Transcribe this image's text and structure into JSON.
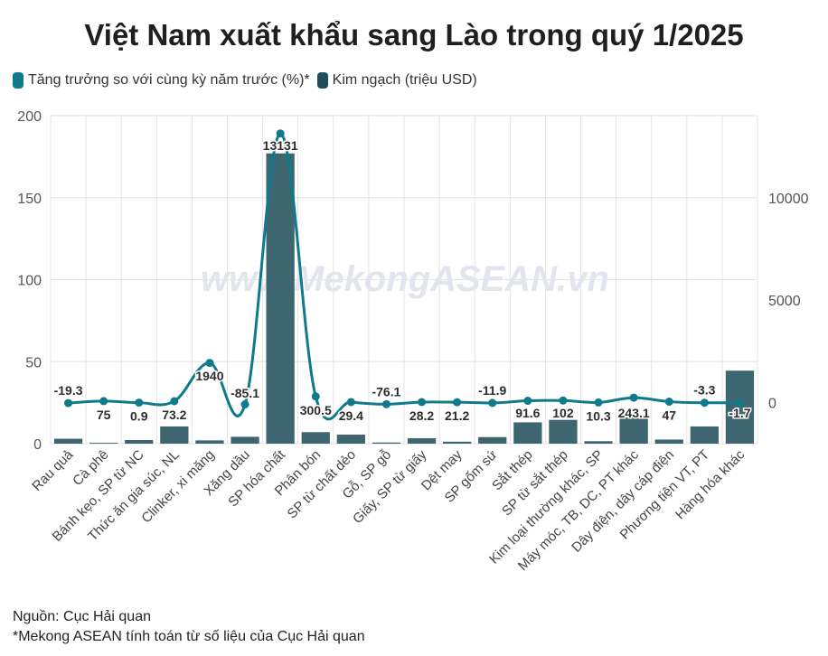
{
  "title": "Việt Nam xuất khẩu sang Lào trong quý 1/2025",
  "legend": {
    "growth": "Tăng trưởng so với cùng kỳ năm trước (%)*",
    "value": "Kim ngạch (triệu USD)"
  },
  "watermark": "www.MekongASEAN.vn",
  "notes": {
    "source": "Nguồn: Cục Hải quan",
    "footnote": "*Mekong ASEAN tính toán từ số liệu của Cục Hải quan"
  },
  "colors": {
    "bar": "#3e6670",
    "line": "#0e7a8c",
    "grid": "#e3e3e3"
  },
  "chart_data": {
    "type": "bar+line",
    "title": "Việt Nam xuất khẩu sang Lào trong quý 1/2025",
    "categories": [
      "Rau quả",
      "Cà phê",
      "Bánh kẹo, SP từ NC",
      "Thức ăn gia súc, NL",
      "Clinker, xi măng",
      "Xăng dầu",
      "SP hóa chất",
      "Phân bón",
      "SP từ chất dẻo",
      "Gỗ, SP gỗ",
      "Giấy, SP từ giấy",
      "Dệt may",
      "SP gốm sứ",
      "Sắt thép",
      "SP từ sắt thép",
      "Kim loại thường khác, SP",
      "Máy móc, TB, DC, PT khác",
      "Dây điện, dây cáp điện",
      "Phương tiện VT, PT",
      "Hàng hóa khác"
    ],
    "series": [
      {
        "name": "Kim ngạch (triệu USD)",
        "type": "bar",
        "axis": "left",
        "values": [
          3,
          0.5,
          2.2,
          10.5,
          2,
          4.2,
          177,
          7,
          5.5,
          0.7,
          3.3,
          1.2,
          4,
          13,
          14.5,
          1.5,
          16,
          2.5,
          10.5,
          44.5
        ]
      },
      {
        "name": "Tăng trưởng so với cùng kỳ năm trước (%)*",
        "type": "line",
        "axis": "right",
        "values": [
          -19.3,
          75,
          0.9,
          73.2,
          1940,
          -85.1,
          13131,
          300.5,
          29.4,
          -76.1,
          28.2,
          21.2,
          -11.9,
          91.6,
          102,
          10.3,
          243.1,
          47,
          -3.3,
          -1.7
        ],
        "labels": [
          "-19.3",
          "75",
          "0.9",
          "73.2",
          "1940",
          "-85.1",
          "13131",
          "300.5",
          "29.4",
          "-76.1",
          "28.2",
          "21.2",
          "-11.9",
          "91.6",
          "102",
          "10.3",
          "243.1",
          "47",
          "-3.3",
          "-1.7"
        ]
      }
    ],
    "y_left": {
      "min": 0,
      "max": 200,
      "ticks": [
        "0",
        "50",
        "100",
        "150",
        "200"
      ]
    },
    "y_right": {
      "min": -2000,
      "max": 14000,
      "ticks": [
        "0",
        "5000",
        "10000"
      ]
    },
    "grid": true
  }
}
